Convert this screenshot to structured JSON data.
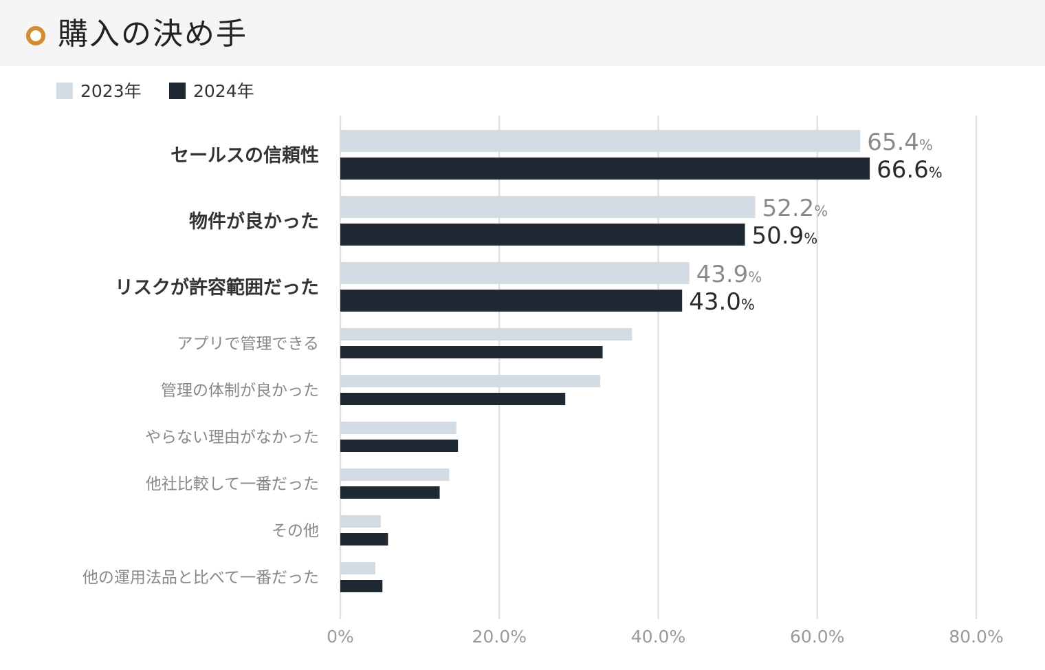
{
  "header": {
    "title": "購入の決め手"
  },
  "colors": {
    "accent": "#d98a2b",
    "series_2023": "#d3dce4",
    "series_2024": "#1f2933",
    "value_2023_text": "#8a8a8a",
    "value_2024_text": "#2a2a2a",
    "grid": "#e1e1e1",
    "label_bold": "#333333",
    "label_regular": "#888888"
  },
  "chart_data": {
    "type": "bar",
    "orientation": "horizontal",
    "categories": [
      "セールスの信頼性",
      "物件が良かった",
      "リスクが許容範囲だった",
      "アプリで管理できる",
      "管理の体制が良かった",
      "やらない理由がなかった",
      "他社比較して一番だった",
      "その他",
      "他の運用法品と比べて一番だった"
    ],
    "highlighted_count": 3,
    "series": [
      {
        "name": "2023年",
        "values": [
          65.4,
          52.2,
          43.9,
          36.7,
          32.7,
          14.6,
          13.7,
          5.1,
          4.4
        ]
      },
      {
        "name": "2024年",
        "values": [
          66.6,
          50.9,
          43.0,
          33.0,
          28.3,
          14.8,
          12.5,
          6.0,
          5.3
        ]
      }
    ],
    "value_labels": {
      "2023年": [
        "65.4",
        "52.2",
        "43.9"
      ],
      "2024年": [
        "66.6",
        "50.9",
        "43.0"
      ],
      "unit": "%"
    },
    "xlim": [
      0,
      80
    ],
    "xticks": [
      0,
      20,
      40,
      60,
      80
    ],
    "xtick_labels": [
      "0%",
      "20.0%",
      "40.0%",
      "60.0%",
      "80.0%"
    ],
    "grid": true,
    "legend": "top-left"
  }
}
